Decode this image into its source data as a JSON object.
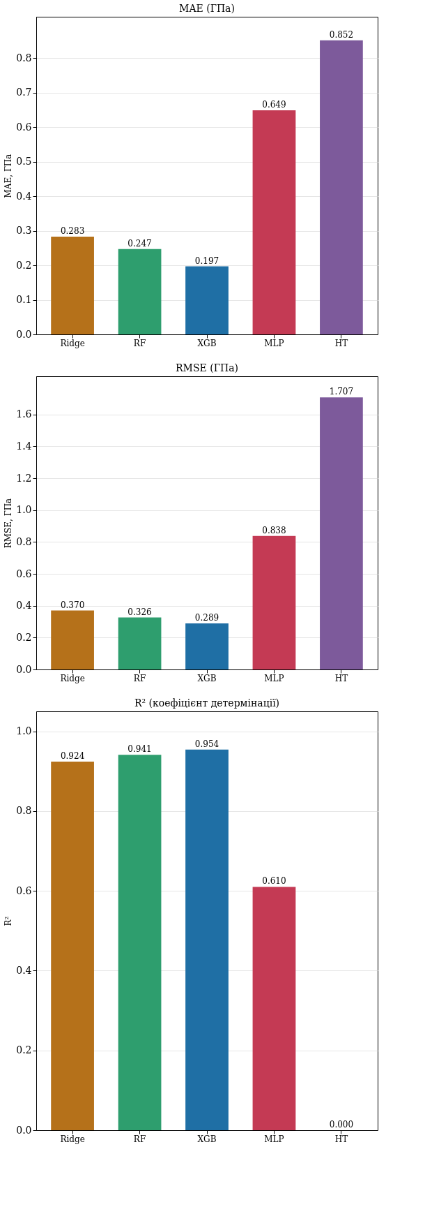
{
  "chart_data": [
    {
      "type": "bar",
      "title": "MAE (ГПа)",
      "ylabel": "MAE, ГПа",
      "categories": [
        "Ridge",
        "RF",
        "XGB",
        "MLP",
        "HT"
      ],
      "values": [
        0.283,
        0.247,
        0.197,
        0.649,
        0.852
      ],
      "value_labels": [
        "0.283",
        "0.247",
        "0.197",
        "0.649",
        "0.852"
      ],
      "colors": [
        "#b5711a",
        "#2e9e6e",
        "#1f6fa5",
        "#c43a54",
        "#7d5a9b"
      ],
      "ylim": [
        0,
        0.92
      ],
      "yticks": [
        {
          "value": 0,
          "label": "0.0"
        },
        {
          "value": 0.1,
          "label": "0.1"
        },
        {
          "value": 0.2,
          "label": "0.2"
        },
        {
          "value": 0.3,
          "label": "0.3"
        },
        {
          "value": 0.4,
          "label": "0.4"
        },
        {
          "value": 0.5,
          "label": "0.5"
        },
        {
          "value": 0.6,
          "label": "0.6"
        },
        {
          "value": 0.7,
          "label": "0.7"
        },
        {
          "value": 0.8,
          "label": "0.8"
        }
      ],
      "grid": "y"
    },
    {
      "type": "bar",
      "title": "RMSE (ГПа)",
      "ylabel": "RMSE, ГПа",
      "categories": [
        "Ridge",
        "RF",
        "XGB",
        "MLP",
        "HT"
      ],
      "values": [
        0.37,
        0.326,
        0.289,
        0.838,
        1.707
      ],
      "value_labels": [
        "0.370",
        "0.326",
        "0.289",
        "0.838",
        "1.707"
      ],
      "colors": [
        "#b5711a",
        "#2e9e6e",
        "#1f6fa5",
        "#c43a54",
        "#7d5a9b"
      ],
      "ylim": [
        0,
        1.84
      ],
      "yticks": [
        {
          "value": 0,
          "label": "0.0"
        },
        {
          "value": 0.2,
          "label": "0.2"
        },
        {
          "value": 0.4,
          "label": "0.4"
        },
        {
          "value": 0.6,
          "label": "0.6"
        },
        {
          "value": 0.8,
          "label": "0.8"
        },
        {
          "value": 1,
          "label": "1.0"
        },
        {
          "value": 1.2,
          "label": "1.2"
        },
        {
          "value": 1.4,
          "label": "1.4"
        },
        {
          "value": 1.6,
          "label": "1.6"
        }
      ],
      "grid": "y"
    },
    {
      "type": "bar",
      "title": "R² (коефіцієнт детермінації)",
      "ylabel": "R²",
      "categories": [
        "Ridge",
        "RF",
        "XGB",
        "MLP",
        "HT"
      ],
      "values": [
        0.924,
        0.941,
        0.954,
        0.61,
        0
      ],
      "value_labels": [
        "0.924",
        "0.941",
        "0.954",
        "0.610",
        "0.000"
      ],
      "colors": [
        "#b5711a",
        "#2e9e6e",
        "#1f6fa5",
        "#c43a54",
        "#7d5a9b"
      ],
      "ylim": [
        0,
        1.05
      ],
      "yticks": [
        {
          "value": 0,
          "label": "0.0"
        },
        {
          "value": 0.2,
          "label": "0.2"
        },
        {
          "value": 0.4,
          "label": "0.4"
        },
        {
          "value": 0.6,
          "label": "0.6"
        },
        {
          "value": 0.8,
          "label": "0.8"
        },
        {
          "value": 1,
          "label": "1.0"
        }
      ],
      "grid": "y"
    }
  ]
}
